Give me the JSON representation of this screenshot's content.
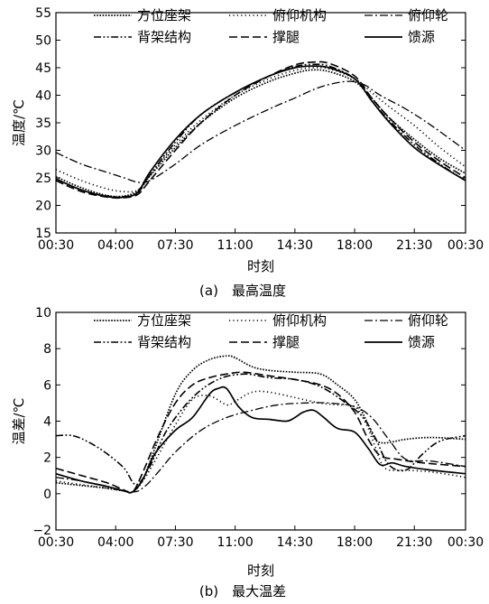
{
  "chart_data": [
    {
      "type": "line",
      "caption": "(a)　最高温度",
      "xlabel": "时刻",
      "ylabel": "温度/℃",
      "xticks": [
        "00:30",
        "04:00",
        "07:30",
        "11:00",
        "14:30",
        "18:00",
        "21:30",
        "00:30"
      ],
      "xticks_hours": [
        0.5,
        4,
        7.5,
        11,
        14.5,
        18,
        21.5,
        24.5
      ],
      "xlim": [
        0.5,
        24.5
      ],
      "ylim": [
        15,
        55
      ],
      "yticks": [
        15,
        20,
        25,
        30,
        35,
        40,
        45,
        50,
        55
      ],
      "legend": {
        "placement": "top",
        "columns": 3
      },
      "series": [
        {
          "name": "方位座架",
          "dash": "dotted",
          "x": [
            0.5,
            2,
            3.5,
            4.5,
            5.3,
            6,
            7.5,
            9,
            11,
            13,
            14.5,
            15.5,
            16.5,
            18,
            19,
            20,
            21.5,
            23,
            24.5
          ],
          "y": [
            25.2,
            23.2,
            21.8,
            21.7,
            22.7,
            25.3,
            30.5,
            35,
            39.5,
            42.5,
            44,
            44.6,
            44.3,
            42.5,
            39.5,
            36,
            32,
            28.5,
            25.8
          ]
        },
        {
          "name": "俯仰机构",
          "dash": "fine-dotted",
          "x": [
            0.5,
            2,
            3.5,
            4.5,
            5.3,
            6,
            7.5,
            9,
            11,
            13,
            14.5,
            15.5,
            16.5,
            18,
            19,
            20,
            21.5,
            23,
            24.5
          ],
          "y": [
            26.5,
            24.5,
            23,
            22.5,
            22.8,
            25.5,
            31,
            35.5,
            40,
            43,
            44.5,
            45,
            44.8,
            43,
            40.5,
            38,
            34.5,
            30.5,
            27
          ]
        },
        {
          "name": "俯仰轮",
          "dash": "dash-dot",
          "x": [
            0.5,
            2,
            3.5,
            4.5,
            5.3,
            6,
            7.5,
            9,
            11,
            13,
            14.5,
            16,
            17.5,
            18.5,
            19.5,
            21,
            22.5,
            24.5
          ],
          "y": [
            29.6,
            27.5,
            26,
            25,
            24.2,
            24.5,
            27.5,
            31,
            34.5,
            37.5,
            39.5,
            41.5,
            42.5,
            42,
            40,
            37.5,
            34.5,
            30
          ]
        },
        {
          "name": "背架结构",
          "dash": "dash-dot-dot",
          "x": [
            0.5,
            2,
            3.5,
            4.5,
            5.3,
            6,
            7.5,
            9,
            11,
            13,
            14.5,
            15.5,
            16.5,
            18,
            19,
            20,
            21.5,
            23,
            24.5
          ],
          "y": [
            24.8,
            22.8,
            21.7,
            21.6,
            22.3,
            25.5,
            31.5,
            36.5,
            40.5,
            43.5,
            45.2,
            45.6,
            45.3,
            43,
            39,
            35.5,
            31,
            27.5,
            24.5
          ]
        },
        {
          "name": "撑腿",
          "dash": "dashed",
          "x": [
            0.5,
            2,
            3.5,
            4.5,
            5.3,
            6,
            7.5,
            9,
            11,
            13,
            14.5,
            15.5,
            16.5,
            18,
            19,
            20,
            21.5,
            23,
            24.5
          ],
          "y": [
            24.5,
            22.5,
            21.5,
            21.4,
            22,
            24.5,
            30,
            35,
            40,
            43.5,
            45.5,
            46,
            45.8,
            43.5,
            39.5,
            36,
            31.5,
            28,
            25
          ]
        },
        {
          "name": "馈源",
          "dash": "solid",
          "x": [
            0.5,
            2,
            3.5,
            4.5,
            5.3,
            6,
            7.5,
            9,
            11,
            13,
            14.5,
            15.5,
            16.5,
            18,
            19,
            20,
            21.5,
            23,
            24.5
          ],
          "y": [
            24.8,
            22.8,
            21.6,
            21.5,
            22.4,
            26,
            32,
            36.5,
            40.5,
            43.5,
            45,
            45.3,
            45,
            43,
            39,
            35.2,
            30.5,
            27.3,
            24.5
          ]
        }
      ]
    },
    {
      "type": "line",
      "caption": "(b)　最大温差",
      "xlabel": "时刻",
      "ylabel": "温差/℃",
      "xticks": [
        "00:30",
        "04:00",
        "07:30",
        "11:00",
        "14:30",
        "18:00",
        "21:30",
        "00:30"
      ],
      "xticks_hours": [
        0.5,
        4,
        7.5,
        11,
        14.5,
        18,
        21.5,
        24.5
      ],
      "xlim": [
        0.5,
        24.5
      ],
      "ylim": [
        -2,
        10
      ],
      "yticks": [
        -2,
        0,
        2,
        4,
        6,
        8,
        10
      ],
      "legend": {
        "placement": "top",
        "columns": 3
      },
      "series": [
        {
          "name": "方位座架",
          "dash": "dotted",
          "x": [
            0.5,
            2,
            3.5,
            4.5,
            5,
            5.6,
            6.3,
            7.5,
            8.5,
            9.5,
            10.5,
            11,
            12,
            13,
            14.5,
            16,
            17,
            18,
            18.7,
            19.2,
            19.8,
            21,
            22.5,
            24.5
          ],
          "y": [
            0.6,
            0.45,
            0.3,
            0.15,
            0.1,
            0.8,
            2.5,
            5.5,
            6.8,
            7.4,
            7.6,
            7.5,
            7,
            6.8,
            6.7,
            6.6,
            6,
            5.2,
            4,
            3,
            2.8,
            3,
            3.1,
            3
          ]
        },
        {
          "name": "俯仰机构",
          "dash": "fine-dotted",
          "x": [
            0.5,
            2,
            3.5,
            4.5,
            5,
            5.6,
            6.3,
            7.5,
            8.5,
            9.5,
            10.5,
            11,
            12,
            13,
            14.5,
            16,
            17,
            18,
            18.7,
            19.2,
            19.8,
            21,
            22.5,
            24.5
          ],
          "y": [
            0.7,
            0.5,
            0.3,
            0.15,
            0.1,
            0.7,
            1.8,
            3.8,
            5.2,
            5.4,
            4.9,
            5.1,
            5.6,
            5.6,
            5.3,
            5,
            4.9,
            4.8,
            3.8,
            2.6,
            1.4,
            1.3,
            1.2,
            0.9
          ]
        },
        {
          "name": "俯仰轮",
          "dash": "dash-dot",
          "x": [
            0.5,
            2,
            3.5,
            5,
            5.7,
            6.5,
            7.5,
            9,
            10.5,
            12,
            13.5,
            15,
            16.5,
            18,
            19,
            20,
            21,
            22.5,
            24.5
          ],
          "y": [
            0.9,
            0.7,
            0.4,
            0.1,
            0.4,
            1.2,
            2.3,
            3.5,
            4.2,
            4.6,
            4.9,
            5,
            5,
            4.8,
            4.2,
            3,
            1.9,
            1.8,
            1.5
          ]
        },
        {
          "name": "背架结构",
          "dash": "dash-dot-dot",
          "x": [
            0.5,
            1.5,
            2.5,
            3.5,
            4.5,
            5.2,
            6,
            7,
            8.5,
            10,
            11.5,
            13,
            14.5,
            16,
            17.5,
            18.5,
            19.2,
            20,
            21,
            22,
            23,
            24.5
          ],
          "y": [
            3.2,
            3.2,
            2.8,
            2.2,
            1.4,
            0.5,
            1.5,
            3.5,
            5.3,
            6.3,
            6.6,
            6.4,
            6.3,
            5.9,
            5,
            4.2,
            3.1,
            1.6,
            1.3,
            2.2,
            2.9,
            3.2
          ]
        },
        {
          "name": "撑腿",
          "dash": "dashed",
          "x": [
            0.5,
            2,
            3.5,
            4.5,
            5,
            5.6,
            6.5,
            7.5,
            8.5,
            9.5,
            10.5,
            11.5,
            13,
            14.5,
            16,
            17,
            18,
            18.8,
            19.5,
            20.5,
            22,
            24.5
          ],
          "y": [
            1.4,
            1.0,
            0.6,
            0.2,
            0.1,
            1.2,
            3.2,
            5.0,
            6.0,
            6.4,
            6.6,
            6.7,
            6.5,
            6.3,
            6.0,
            5.5,
            4.5,
            3.0,
            2.1,
            1.9,
            1.7,
            1.5
          ]
        },
        {
          "name": "馈源",
          "dash": "solid",
          "x": [
            0.5,
            2,
            3.5,
            4.5,
            5,
            5.6,
            6.3,
            7.5,
            8.5,
            9.5,
            10,
            10.5,
            11.2,
            12,
            13,
            14,
            14.5,
            15,
            15.6,
            16.2,
            17,
            18,
            18.8,
            19.5,
            20.2,
            21,
            22.5,
            24.5
          ],
          "y": [
            1.1,
            0.7,
            0.4,
            0.15,
            0.1,
            0.8,
            2.2,
            3.5,
            4.2,
            5.5,
            5.8,
            5.8,
            4.8,
            4.2,
            4.1,
            4.0,
            4.2,
            4.5,
            4.6,
            4.2,
            3.6,
            3.4,
            2.5,
            1.6,
            1.7,
            1.5,
            1.3,
            1.1
          ]
        }
      ]
    }
  ]
}
